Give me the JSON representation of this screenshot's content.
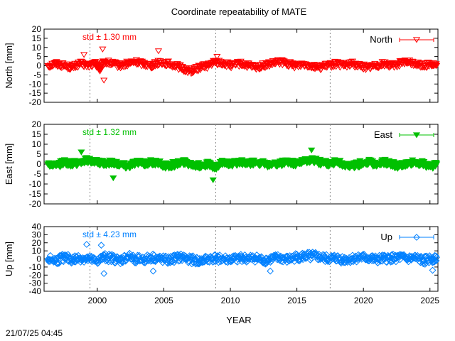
{
  "figure": {
    "title": "Coordinate repeatability of MATE",
    "xlabel": "YEAR",
    "timestamp": "21/07/25 04:45"
  },
  "chart_data": [
    {
      "type": "scatter",
      "name": "north-panel",
      "ylabel": "North [mm]",
      "ylim": [
        -20,
        20
      ],
      "yticks": [
        20,
        15,
        10,
        5,
        0,
        -5,
        -10,
        -15,
        -20
      ],
      "xlim": [
        1996.0,
        2025.6
      ],
      "xticks": [
        2000,
        2005,
        2010,
        2015,
        2020,
        2025
      ],
      "show_x_tick_labels": false,
      "color": "#ff0000",
      "marker": "triangle-down-open",
      "legend": "North",
      "legend_position": "top-right",
      "annotation": "std ± 1.30 mm",
      "std_mm": 1.3,
      "vertical_reference_lines": [
        1999.45,
        2008.9,
        2017.5
      ],
      "series": [
        {
          "name": "North",
          "x": [
            1996.3,
            1996.9,
            1997.5,
            1998.1,
            1998.7,
            1999.3,
            1999.9,
            2000.2,
            2000.5,
            2001.1,
            2001.7,
            2002.3,
            2002.9,
            2003.5,
            2004.1,
            2004.7,
            2005.3,
            2005.9,
            2006.5,
            2007.1,
            2007.7,
            2008.3,
            2008.9,
            2009.5,
            2010.1,
            2010.7,
            2011.3,
            2011.9,
            2012.5,
            2013.1,
            2013.7,
            2014.3,
            2014.9,
            2015.5,
            2016.1,
            2016.7,
            2017.3,
            2017.9,
            2018.5,
            2019.1,
            2019.7,
            2020.3,
            2020.9,
            2021.5,
            2022.1,
            2022.7,
            2023.3,
            2023.9,
            2024.5,
            2025.1,
            2025.5
          ],
          "y": [
            0,
            1,
            0,
            -1,
            1,
            0,
            1,
            -2,
            2,
            1,
            0,
            1,
            2,
            1,
            0,
            2,
            1,
            0,
            -2,
            -3,
            -1,
            0,
            2,
            1,
            0,
            1,
            0,
            -1,
            0,
            1,
            2,
            1,
            0,
            1,
            0,
            -1,
            0,
            1,
            0,
            1,
            0,
            -1,
            0,
            1,
            0,
            1,
            2,
            1,
            0,
            1,
            0
          ]
        }
      ],
      "outliers": [
        {
          "x": 1999.0,
          "y": 6
        },
        {
          "x": 2000.4,
          "y": 9
        },
        {
          "x": 2000.5,
          "y": -8
        },
        {
          "x": 2004.6,
          "y": 8
        },
        {
          "x": 2009.0,
          "y": 5
        }
      ]
    },
    {
      "type": "scatter",
      "name": "east-panel",
      "ylabel": "East [mm]",
      "ylim": [
        -20,
        20
      ],
      "yticks": [
        20,
        15,
        10,
        5,
        0,
        -5,
        -10,
        -15,
        -20
      ],
      "xlim": [
        1996.0,
        2025.6
      ],
      "xticks": [
        2000,
        2005,
        2010,
        2015,
        2020,
        2025
      ],
      "show_x_tick_labels": false,
      "color": "#00c000",
      "marker": "triangle-down-filled",
      "legend": "East",
      "legend_position": "top-right",
      "annotation": "std ± 1.32 mm",
      "std_mm": 1.32,
      "vertical_reference_lines": [
        1999.45,
        2008.9,
        2017.5
      ],
      "series": [
        {
          "name": "East",
          "x": [
            1996.3,
            1996.9,
            1997.5,
            1998.1,
            1998.7,
            1999.3,
            1999.9,
            2000.5,
            2001.1,
            2001.7,
            2002.3,
            2002.9,
            2003.5,
            2004.1,
            2004.7,
            2005.3,
            2005.9,
            2006.5,
            2007.1,
            2007.7,
            2008.3,
            2008.9,
            2009.5,
            2010.1,
            2010.7,
            2011.3,
            2011.9,
            2012.5,
            2013.1,
            2013.7,
            2014.3,
            2014.9,
            2015.5,
            2016.1,
            2016.7,
            2017.3,
            2017.9,
            2018.5,
            2019.1,
            2019.7,
            2020.3,
            2020.9,
            2021.5,
            2022.1,
            2022.7,
            2023.3,
            2023.9,
            2024.5,
            2025.1,
            2025.5
          ],
          "y": [
            0,
            -1,
            1,
            0,
            1,
            2,
            1,
            0,
            1,
            0,
            -1,
            1,
            0,
            1,
            0,
            -1,
            0,
            1,
            0,
            -1,
            0,
            -2,
            1,
            0,
            1,
            0,
            1,
            0,
            -1,
            0,
            1,
            0,
            1,
            2,
            1,
            0,
            1,
            0,
            -1,
            0,
            1,
            0,
            1,
            0,
            -1,
            0,
            1,
            0,
            -1,
            0
          ]
        }
      ],
      "outliers": [
        {
          "x": 1998.8,
          "y": 6
        },
        {
          "x": 2001.2,
          "y": -7
        },
        {
          "x": 2008.7,
          "y": -8
        },
        {
          "x": 2016.1,
          "y": 7
        }
      ]
    },
    {
      "type": "scatter",
      "name": "up-panel",
      "ylabel": "Up [mm]",
      "ylim": [
        -40,
        40
      ],
      "yticks": [
        40,
        30,
        20,
        10,
        0,
        -10,
        -20,
        -30,
        -40
      ],
      "xlim": [
        1996.0,
        2025.6
      ],
      "xticks": [
        2000,
        2005,
        2010,
        2015,
        2020,
        2025
      ],
      "show_x_tick_labels": true,
      "color": "#0080ff",
      "marker": "diamond-open",
      "legend": "Up",
      "legend_position": "top-right",
      "annotation": "std ± 4.23 mm",
      "std_mm": 4.23,
      "vertical_reference_lines": [
        1999.45,
        2008.9,
        2017.5
      ],
      "series": [
        {
          "name": "Up",
          "x": [
            1996.3,
            1996.9,
            1997.5,
            1998.1,
            1998.7,
            1999.3,
            1999.9,
            2000.5,
            2001.1,
            2001.7,
            2002.3,
            2002.9,
            2003.5,
            2004.1,
            2004.7,
            2005.3,
            2005.9,
            2006.5,
            2007.1,
            2007.7,
            2008.3,
            2008.9,
            2009.5,
            2010.1,
            2010.7,
            2011.3,
            2011.9,
            2012.5,
            2013.1,
            2013.7,
            2014.3,
            2014.9,
            2015.5,
            2016.1,
            2016.7,
            2017.3,
            2017.9,
            2018.5,
            2019.1,
            2019.7,
            2020.3,
            2020.9,
            2021.5,
            2022.1,
            2022.7,
            2023.3,
            2023.9,
            2024.5,
            2025.1,
            2025.5
          ],
          "y": [
            0,
            -2,
            2,
            -1,
            1,
            0,
            -3,
            2,
            1,
            -2,
            3,
            0,
            -1,
            2,
            0,
            -2,
            1,
            2,
            -1,
            -3,
            0,
            1,
            0,
            -1,
            2,
            0,
            1,
            -2,
            0,
            1,
            -1,
            2,
            3,
            4,
            2,
            0,
            1,
            -1,
            0,
            2,
            1,
            -1,
            0,
            1,
            2,
            0,
            1,
            -2,
            0,
            2
          ]
        }
      ],
      "outliers": [
        {
          "x": 1999.2,
          "y": 18
        },
        {
          "x": 2000.3,
          "y": 17
        },
        {
          "x": 2000.5,
          "y": -18
        },
        {
          "x": 2004.2,
          "y": -15
        },
        {
          "x": 2013.0,
          "y": -15
        },
        {
          "x": 2025.2,
          "y": -14
        }
      ]
    }
  ]
}
